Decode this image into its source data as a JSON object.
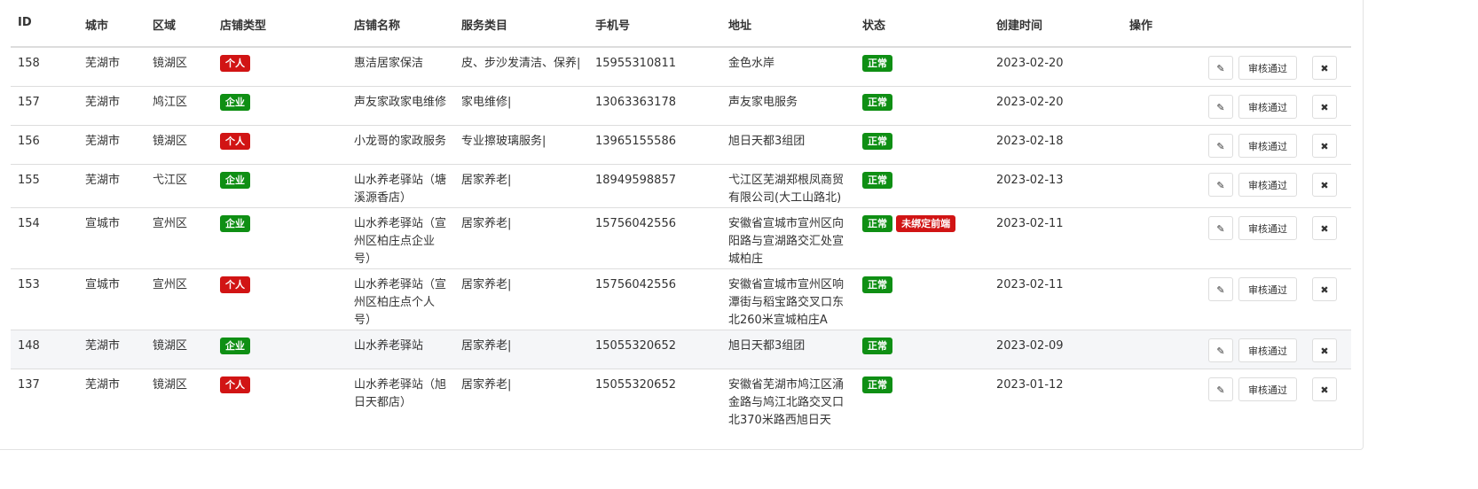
{
  "headers": [
    "ID",
    "城市",
    "区域",
    "店铺类型",
    "店铺名称",
    "服务类目",
    "手机号",
    "地址",
    "状态",
    "创建时间",
    "操作"
  ],
  "colors": {
    "green": "#0f8f14",
    "red": "#d11414"
  },
  "icons": {
    "edit": "pencil-icon",
    "delete": "close-icon"
  },
  "audit_label": "审核通过",
  "rows": [
    {
      "id": "158",
      "city": "芜湖市",
      "district": "镜湖区",
      "type": "个人",
      "type_color": "red",
      "name": "惠洁居家保洁",
      "service": "皮、步沙发清洁、保养|",
      "phone": "15955310811",
      "address": "金色水岸",
      "status": "正常",
      "extra_status": "",
      "created": "2023-02-20"
    },
    {
      "id": "157",
      "city": "芜湖市",
      "district": "鸠江区",
      "type": "企业",
      "type_color": "green",
      "name": "声友家政家电维修",
      "service": "家电维修|",
      "phone": "13063363178",
      "address": "声友家电服务",
      "status": "正常",
      "extra_status": "",
      "created": "2023-02-20"
    },
    {
      "id": "156",
      "city": "芜湖市",
      "district": "镜湖区",
      "type": "个人",
      "type_color": "red",
      "name": "小龙哥的家政服务",
      "service": "专业擦玻璃服务|",
      "phone": "13965155586",
      "address": "旭日天都3组团",
      "status": "正常",
      "extra_status": "",
      "created": "2023-02-18"
    },
    {
      "id": "155",
      "city": "芜湖市",
      "district": "弋江区",
      "type": "企业",
      "type_color": "green",
      "name": "山水养老驿站（塘溪源香店）",
      "service": "居家养老|",
      "phone": "18949598857",
      "address": "弋江区芜湖郑根凤商贸有限公司(大工山路北)",
      "status": "正常",
      "extra_status": "",
      "created": "2023-02-13"
    },
    {
      "id": "154",
      "city": "宣城市",
      "district": "宣州区",
      "type": "企业",
      "type_color": "green",
      "name": "山水养老驿站（宣州区柏庄点企业号）",
      "service": "居家养老|",
      "phone": "15756042556",
      "address": "安徽省宣城市宣州区向阳路与宣湖路交汇处宣城柏庄",
      "status": "正常",
      "extra_status": "未绑定前端",
      "created": "2023-02-11"
    },
    {
      "id": "153",
      "city": "宣城市",
      "district": "宣州区",
      "type": "个人",
      "type_color": "red",
      "name": "山水养老驿站（宣州区柏庄点个人号）",
      "service": "居家养老|",
      "phone": "15756042556",
      "address": "安徽省宣城市宣州区响潭街与稻宝路交叉口东北260米宣城柏庄A",
      "status": "正常",
      "extra_status": "",
      "created": "2023-02-11"
    },
    {
      "id": "148",
      "city": "芜湖市",
      "district": "镜湖区",
      "type": "企业",
      "type_color": "green",
      "name": "山水养老驿站",
      "service": "居家养老|",
      "phone": "15055320652",
      "address": "旭日天都3组团",
      "status": "正常",
      "extra_status": "",
      "created": "2023-02-09"
    },
    {
      "id": "137",
      "city": "芜湖市",
      "district": "镜湖区",
      "type": "个人",
      "type_color": "red",
      "name": "山水养老驿站（旭日天都店）",
      "service": "居家养老|",
      "phone": "15055320652",
      "address": "安徽省芜湖市鸠江区涌金路与鸠江北路交叉口北370米路西旭日天",
      "status": "正常",
      "extra_status": "",
      "created": "2023-01-12"
    }
  ]
}
